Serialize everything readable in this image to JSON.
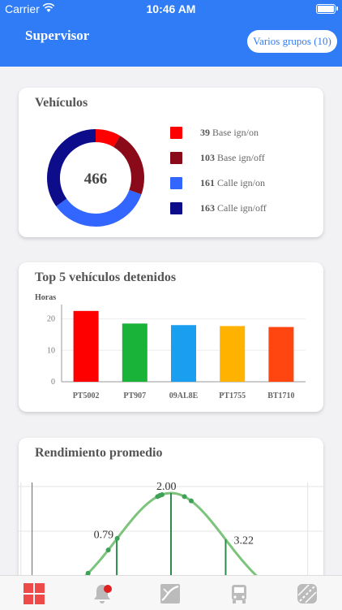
{
  "status": {
    "carrier": "Carrier",
    "time": "10:46 AM"
  },
  "header": {
    "title": "Supervisor",
    "groups_button": "Varios grupos (10)"
  },
  "vehicles_card": {
    "title": "Vehículos",
    "total": "466",
    "legend": [
      {
        "count": "39",
        "label": "Base ign/on",
        "color": "#ff0000",
        "value": 39
      },
      {
        "count": "103",
        "label": "Base ign/off",
        "color": "#8b0a1a",
        "value": 103
      },
      {
        "count": "161",
        "label": "Calle ign/on",
        "color": "#3366ff",
        "value": 161
      },
      {
        "count": "163",
        "label": "Calle ign/off",
        "color": "#0d0d8c",
        "value": 163
      }
    ]
  },
  "stopped_card": {
    "title": "Top 5 vehículos detenidos"
  },
  "performance_card": {
    "title": "Rendimiento promedio"
  },
  "chart_data": [
    {
      "type": "pie",
      "categories": [
        "Base ign/on",
        "Base ign/off",
        "Calle ign/on",
        "Calle ign/off"
      ],
      "values": [
        39,
        103,
        161,
        163
      ],
      "colors": [
        "#ff0000",
        "#8b0a1a",
        "#3366ff",
        "#0d0d8c"
      ],
      "center_label": "466"
    },
    {
      "type": "bar",
      "ylabel": "Horas",
      "categories": [
        "PT5002",
        "PT907",
        "09AL8E",
        "PT1755",
        "BT1710"
      ],
      "values": [
        22.5,
        18.5,
        18,
        17.7,
        17.4
      ],
      "colors": [
        "#ff0000",
        "#19b33a",
        "#1a9ff0",
        "#ffb300",
        "#ff4510"
      ],
      "yticks": [
        "0",
        "10",
        "20"
      ],
      "ylim": [
        0,
        24
      ]
    },
    {
      "type": "line",
      "labels": [
        "0.79",
        "2.00",
        "3.22"
      ],
      "label_x": [
        0.79,
        2.0,
        3.22
      ],
      "points_x": [
        0.15,
        0.6,
        0.8,
        1.7,
        1.75,
        1.8,
        2.3,
        2.45
      ],
      "color": "#7cc47c",
      "xlim": [
        -1.4,
        5.4
      ]
    }
  ]
}
